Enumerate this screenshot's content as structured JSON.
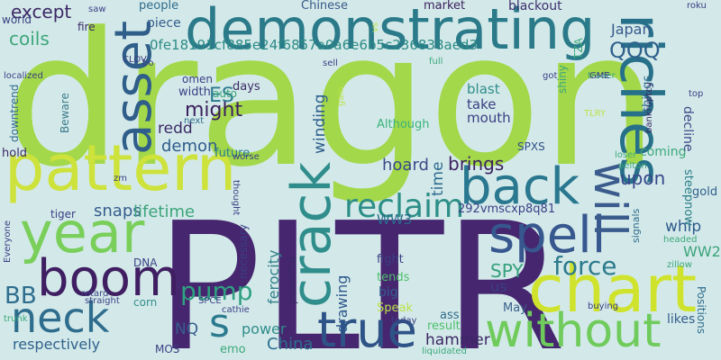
{
  "background": "#d3e9e9",
  "words": [
    {
      "text": "dragon",
      "color": "#a3d84a"
    },
    {
      "text": "PLTR",
      "color": "#46266f"
    },
    {
      "text": "demonstrating",
      "color": "#2a7a8a"
    },
    {
      "text": "pattern",
      "color": "#cde23a"
    },
    {
      "text": "riches",
      "color": "#27708a"
    },
    {
      "text": "chart",
      "color": "#cfe32c"
    },
    {
      "text": "asset",
      "color": "#2f5e8a"
    },
    {
      "text": "year",
      "color": "#79cf5a"
    },
    {
      "text": "back",
      "color": "#2a7790"
    },
    {
      "text": "boom",
      "color": "#3f1e62"
    },
    {
      "text": "crack",
      "color": "#2f8d8c"
    },
    {
      "text": "spell",
      "color": "#37578f"
    },
    {
      "text": "true",
      "color": "#2e5387"
    },
    {
      "text": "without",
      "color": "#6fcb5b"
    },
    {
      "text": "neck",
      "color": "#2f6d8e"
    },
    {
      "text": "will",
      "color": "#3a5b8c"
    },
    {
      "text": "reclaim",
      "color": "#2c8e87"
    },
    {
      "text": "s",
      "color": "#2c7a8e"
    },
    {
      "text": "pump",
      "color": "#2fa180"
    },
    {
      "text": "force",
      "color": "#2d7a8c"
    },
    {
      "text": "BB",
      "color": "#2e6e8e"
    },
    {
      "text": "SPY",
      "color": "#35a07c"
    },
    {
      "text": "might",
      "color": "#3b1f5e"
    },
    {
      "text": "ES",
      "color": "#2c7a8e"
    },
    {
      "text": "QQQ",
      "color": "#2f618c"
    },
    {
      "text": "coils",
      "color": "#3da57a"
    },
    {
      "text": "except",
      "color": "#3d2866"
    },
    {
      "text": "0fe18191cf885e24f6857a0a6e6b5c236838aed3",
      "color": "#2b8a86"
    },
    {
      "text": "brings",
      "color": "#3c235f"
    },
    {
      "text": "upon",
      "color": "#38488c"
    },
    {
      "text": "time",
      "color": "#2d6a8e"
    },
    {
      "text": "winding",
      "color": "#2f5f8c"
    },
    {
      "text": "hoard",
      "color": "#3a4a88"
    },
    {
      "text": "snaps",
      "color": "#355d8d"
    },
    {
      "text": "lifetime",
      "color": "#3ca47a"
    },
    {
      "text": "redd",
      "color": "#3b2a66"
    },
    {
      "text": "demon",
      "color": "#2f5c8c"
    },
    {
      "text": "hammer",
      "color": "#3a2663"
    },
    {
      "text": "ferocity",
      "color": "#317e8a"
    },
    {
      "text": "drawing",
      "color": "#2e588b"
    },
    {
      "text": "China",
      "color": "#2c6f8d"
    },
    {
      "text": "respectively",
      "color": "#2f618c"
    },
    {
      "text": "NQ",
      "color": "#355d8d"
    },
    {
      "text": "power",
      "color": "#2f8d8a"
    },
    {
      "text": "WW3",
      "color": "#2b6b8e"
    },
    {
      "text": "WW2",
      "color": "#3ca47a"
    },
    {
      "text": "whip",
      "color": "#2e5a8c"
    },
    {
      "text": "us",
      "color": "#3a3f84"
    },
    {
      "text": "292vmscxp8q81",
      "color": "#3a3f86"
    },
    {
      "text": "coming",
      "color": "#3ca77a"
    },
    {
      "text": "Japan",
      "color": "#355a8c"
    },
    {
      "text": "blackout",
      "color": "#3d2f6e"
    },
    {
      "text": "market",
      "color": "#3b1f5e"
    },
    {
      "text": "Chinese",
      "color": "#3a5a8a"
    },
    {
      "text": "people",
      "color": "#2f6b8c"
    },
    {
      "text": "future",
      "color": "#2c7e8c"
    },
    {
      "text": "Although",
      "color": "#3ab37a"
    },
    {
      "text": "blast",
      "color": "#2f8d8a"
    },
    {
      "text": "take",
      "color": "#3a3f84"
    },
    {
      "text": "mouth",
      "color": "#3a3f84"
    },
    {
      "text": "days",
      "color": "#3c2a66"
    },
    {
      "text": "width",
      "color": "#3a3f84"
    },
    {
      "text": "piece",
      "color": "#355d8d"
    },
    {
      "text": "things",
      "color": "#2f6d8c"
    },
    {
      "text": "decline",
      "color": "#3a4a88"
    },
    {
      "text": "steepnow",
      "color": "#2c7e8a"
    },
    {
      "text": "SPXS",
      "color": "#2f4f86"
    },
    {
      "text": "gold",
      "color": "#2f5d8c"
    },
    {
      "text": "Positions",
      "color": "#2f6b8c"
    },
    {
      "text": "likes",
      "color": "#355d8d"
    },
    {
      "text": "result",
      "color": "#4cbf6a"
    },
    {
      "text": "Speak",
      "color": "#bde24a"
    },
    {
      "text": "tends",
      "color": "#4cbf6a"
    },
    {
      "text": "fight",
      "color": "#3a3f84"
    },
    {
      "text": "big",
      "color": "#355d8d"
    },
    {
      "text": "May",
      "color": "#3a5f8a"
    },
    {
      "text": "ass",
      "color": "#2f6b8c"
    },
    {
      "text": "DNA",
      "color": "#3a3f84"
    },
    {
      "text": "necessary",
      "color": "#3a3f84"
    },
    {
      "text": "powerful",
      "color": "#3a2a66"
    },
    {
      "text": "corn",
      "color": "#2f8d8a"
    },
    {
      "text": "emo",
      "color": "#3ca77a"
    },
    {
      "text": "tiger",
      "color": "#3a3f84"
    },
    {
      "text": "hold",
      "color": "#3a2a66"
    },
    {
      "text": "downtrend",
      "color": "#2f6b8c"
    },
    {
      "text": "Beware",
      "color": "#3a7a8c"
    },
    {
      "text": "world",
      "color": "#3a3f84"
    },
    {
      "text": "fire",
      "color": "#3a2a66"
    },
    {
      "text": "localized",
      "color": "#3a3f84"
    },
    {
      "text": "omen",
      "color": "#3a3f84"
    },
    {
      "text": "auto",
      "color": "#3ca77a"
    },
    {
      "text": "trader",
      "color": "#3ca77a"
    },
    {
      "text": "roku",
      "color": "#3a3f84"
    },
    {
      "text": "top",
      "color": "#3a3f84"
    },
    {
      "text": "GME",
      "color": "#3a3f84"
    },
    {
      "text": "TLRY",
      "color": "#bde24a"
    },
    {
      "text": "bankruptcy",
      "color": "#3a2a66"
    },
    {
      "text": "loser",
      "color": "#3ca77a"
    },
    {
      "text": "pelton",
      "color": "#3ca77a"
    },
    {
      "text": "headed",
      "color": "#3ca77a"
    },
    {
      "text": "signals",
      "color": "#2f6b8c"
    },
    {
      "text": "zillow",
      "color": "#3ca77a"
    },
    {
      "text": "buying",
      "color": "#3a3f84"
    },
    {
      "text": "TZA",
      "color": "#3ca77a"
    },
    {
      "text": "shiny",
      "color": "#3ca77a"
    },
    {
      "text": "gain",
      "color": "#bde24a"
    },
    {
      "text": "full",
      "color": "#3ca77a"
    },
    {
      "text": "sell",
      "color": "#3a3f84"
    },
    {
      "text": "got",
      "color": "#3a3f84"
    },
    {
      "text": "vs",
      "color": "#bde24a"
    },
    {
      "text": "CLOV",
      "color": "#3a3f84"
    },
    {
      "text": "bo",
      "color": "#3a3f84"
    },
    {
      "text": "saw",
      "color": "#3a3f84"
    },
    {
      "text": "next",
      "color": "#2f6b8c"
    },
    {
      "text": "worse",
      "color": "#3a3f84"
    },
    {
      "text": "thought",
      "color": "#3a3f84"
    },
    {
      "text": "zm",
      "color": "#3a3f84"
    },
    {
      "text": "Everyone",
      "color": "#3a3f84"
    },
    {
      "text": "retard",
      "color": "#3a3f84"
    },
    {
      "text": "straight",
      "color": "#3a3f84"
    },
    {
      "text": "trunk",
      "color": "#3ca77a"
    },
    {
      "text": "SPCE",
      "color": "#3a3f84"
    },
    {
      "text": "cathie",
      "color": "#3a3f84"
    },
    {
      "text": "MOS",
      "color": "#3a3f84"
    },
    {
      "text": "today",
      "color": "#3a3f84"
    },
    {
      "text": "liquidated",
      "color": "#3ca77a"
    }
  ]
}
